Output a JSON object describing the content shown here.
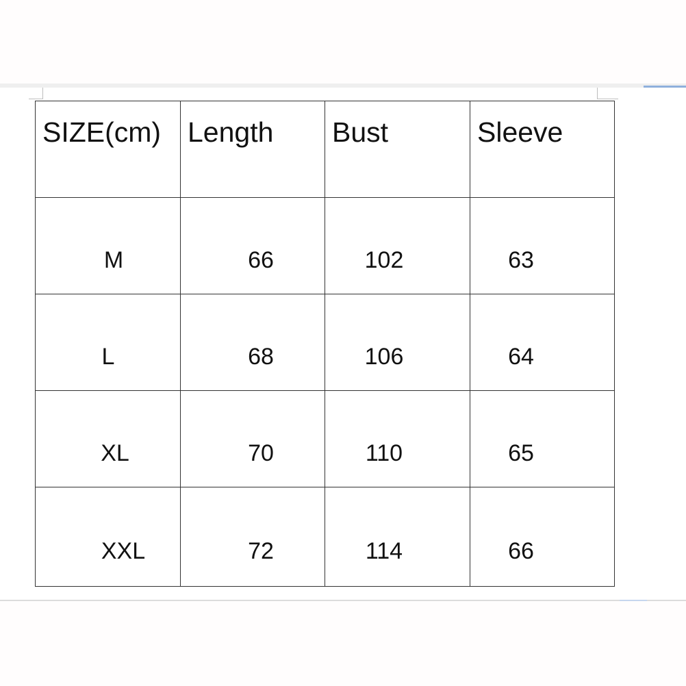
{
  "table": {
    "headers": [
      "SIZE(cm)",
      "Length",
      "Bust",
      "Sleeve"
    ],
    "rows": [
      [
        "M",
        "66",
        "102",
        "63"
      ],
      [
        "L",
        "68",
        "106",
        "64"
      ],
      [
        "XL",
        "70",
        "110",
        "65"
      ],
      [
        "XXL",
        "72",
        "114",
        "66"
      ]
    ]
  }
}
